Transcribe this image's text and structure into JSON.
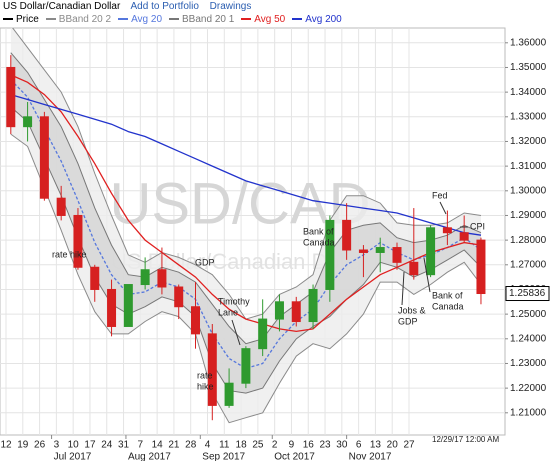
{
  "header": {
    "add_to_portfolio": "Add to Portfolio",
    "drawings": "Drawings"
  },
  "chart_data": {
    "type": "candlestick",
    "title": "US Dollar/Canadian Dollar",
    "watermark": {
      "symbol": "USD/CAD",
      "name": "US Dollar/Canadian Dollar"
    },
    "timestamp": "12/29/17 12:00 AM",
    "x": [
      "2017-06-12",
      "2017-06-19",
      "2017-06-26",
      "2017-07-03",
      "2017-07-10",
      "2017-07-17",
      "2017-07-24",
      "2017-07-31",
      "2017-08-07",
      "2017-08-14",
      "2017-08-21",
      "2017-08-28",
      "2017-09-04",
      "2017-09-11",
      "2017-09-18",
      "2017-09-25",
      "2017-10-02",
      "2017-10-09",
      "2017-10-16",
      "2017-10-23",
      "2017-10-30",
      "2017-11-06",
      "2017-11-13",
      "2017-11-20",
      "2017-11-27",
      "2017-12-04",
      "2017-12-11",
      "2017-12-18",
      "2017-12-25"
    ],
    "series": [
      {
        "name": "Price",
        "color": "#000000",
        "up_color": "#2f9a2f",
        "down_color": "#d62020",
        "open": [
          1.35,
          1.326,
          1.33,
          1.297,
          1.29,
          1.269,
          1.26,
          1.245,
          1.262,
          1.268,
          1.261,
          1.253,
          1.242,
          1.213,
          1.222,
          1.236,
          1.248,
          1.255,
          1.247,
          1.26,
          1.288,
          1.276,
          1.275,
          1.277,
          1.271,
          1.266,
          1.285,
          1.283,
          1.28
        ],
        "high": [
          1.355,
          1.336,
          1.332,
          1.302,
          1.293,
          1.27,
          1.264,
          1.262,
          1.273,
          1.277,
          1.262,
          1.263,
          1.246,
          1.228,
          1.237,
          1.256,
          1.258,
          1.257,
          1.262,
          1.29,
          1.295,
          1.278,
          1.281,
          1.279,
          1.293,
          1.286,
          1.292,
          1.29,
          1.281
        ],
        "low": [
          1.323,
          1.32,
          1.296,
          1.288,
          1.268,
          1.255,
          1.241,
          1.245,
          1.26,
          1.258,
          1.248,
          1.236,
          1.207,
          1.212,
          1.22,
          1.233,
          1.243,
          1.245,
          1.244,
          1.255,
          1.272,
          1.265,
          1.267,
          1.268,
          1.264,
          1.265,
          1.278,
          1.279,
          1.254
        ],
        "close": [
          1.326,
          1.33,
          1.297,
          1.29,
          1.269,
          1.26,
          1.245,
          1.262,
          1.268,
          1.261,
          1.253,
          1.242,
          1.213,
          1.222,
          1.236,
          1.248,
          1.255,
          1.247,
          1.26,
          1.288,
          1.276,
          1.275,
          1.277,
          1.271,
          1.266,
          1.285,
          1.283,
          1.28,
          1.25836
        ]
      },
      {
        "name": "BBand 20 2",
        "color": "#8a8a8a",
        "fill": "#ececec",
        "upper": [
          1.367,
          1.358,
          1.349,
          1.34,
          1.326,
          1.307,
          1.29,
          1.274,
          1.271,
          1.275,
          1.273,
          1.27,
          1.266,
          1.258,
          1.248,
          1.25,
          1.258,
          1.261,
          1.266,
          1.288,
          1.298,
          1.298,
          1.295,
          1.287,
          1.286,
          1.286,
          1.287,
          1.291,
          1.29
        ],
        "lower": [
          1.323,
          1.318,
          1.301,
          1.284,
          1.266,
          1.251,
          1.242,
          1.242,
          1.247,
          1.251,
          1.249,
          1.242,
          1.218,
          1.206,
          1.208,
          1.21,
          1.222,
          1.233,
          1.238,
          1.236,
          1.242,
          1.25,
          1.263,
          1.263,
          1.258,
          1.262,
          1.267,
          1.271,
          1.262
        ]
      },
      {
        "name": "Avg 20",
        "color": "#5577dd",
        "dashed": true,
        "values": [
          1.345,
          1.338,
          1.325,
          1.312,
          1.296,
          1.279,
          1.266,
          1.258,
          1.259,
          1.263,
          1.261,
          1.256,
          1.242,
          1.232,
          1.228,
          1.23,
          1.24,
          1.247,
          1.252,
          1.262,
          1.27,
          1.274,
          1.279,
          1.275,
          1.272,
          1.274,
          1.277,
          1.281,
          1.276
        ]
      },
      {
        "name": "BBand 20 1",
        "color": "#777777",
        "fill": "#d4d4d4",
        "upper": [
          1.356,
          1.348,
          1.337,
          1.326,
          1.311,
          1.293,
          1.278,
          1.266,
          1.265,
          1.269,
          1.267,
          1.263,
          1.254,
          1.245,
          1.238,
          1.24,
          1.249,
          1.254,
          1.259,
          1.275,
          1.284,
          1.286,
          1.287,
          1.281,
          1.279,
          1.28,
          1.282,
          1.286,
          1.283
        ],
        "lower": [
          1.334,
          1.328,
          1.313,
          1.298,
          1.281,
          1.265,
          1.254,
          1.25,
          1.253,
          1.257,
          1.255,
          1.249,
          1.23,
          1.219,
          1.218,
          1.22,
          1.231,
          1.24,
          1.245,
          1.249,
          1.256,
          1.262,
          1.271,
          1.269,
          1.265,
          1.268,
          1.272,
          1.276,
          1.269
        ]
      },
      {
        "name": "Avg 50",
        "color": "#e02020",
        "values": [
          1.347,
          1.344,
          1.339,
          1.332,
          1.322,
          1.311,
          1.299,
          1.288,
          1.28,
          1.275,
          1.27,
          1.265,
          1.258,
          1.252,
          1.248,
          1.246,
          1.244,
          1.243,
          1.244,
          1.25,
          1.256,
          1.261,
          1.266,
          1.269,
          1.272,
          1.275,
          1.277,
          1.279,
          1.278
        ]
      },
      {
        "name": "Avg 200",
        "color": "#2233cc",
        "values": [
          1.339,
          1.337,
          1.335,
          1.333,
          1.331,
          1.329,
          1.327,
          1.324,
          1.322,
          1.319,
          1.316,
          1.313,
          1.31,
          1.307,
          1.304,
          1.302,
          1.3,
          1.298,
          1.296,
          1.295,
          1.294,
          1.293,
          1.292,
          1.291,
          1.289,
          1.287,
          1.285,
          1.283,
          1.282
        ]
      }
    ],
    "ylim": [
      1.201,
      1.366
    ],
    "yticks": [
      {
        "value": 1.21,
        "label": "1.21000"
      },
      {
        "value": 1.22,
        "label": "1.22000"
      },
      {
        "value": 1.23,
        "label": "1.23000"
      },
      {
        "value": 1.24,
        "label": "1.24000"
      },
      {
        "value": 1.25,
        "label": "1.25000"
      },
      {
        "value": 1.26,
        "label": "1.26000"
      },
      {
        "value": 1.27,
        "label": "1.27000"
      },
      {
        "value": 1.28,
        "label": "1.28000"
      },
      {
        "value": 1.29,
        "label": "1.29000"
      },
      {
        "value": 1.3,
        "label": "1.30000"
      },
      {
        "value": 1.31,
        "label": "1.31000"
      },
      {
        "value": 1.32,
        "label": "1.32000"
      },
      {
        "value": 1.33,
        "label": "1.33000"
      },
      {
        "value": 1.34,
        "label": "1.34000"
      },
      {
        "value": 1.35,
        "label": "1.35000"
      },
      {
        "value": 1.36,
        "label": "1.36000"
      }
    ],
    "xticks": [
      {
        "value": "2017-06-12",
        "label": "12"
      },
      {
        "value": "2017-06-19",
        "label": "19"
      },
      {
        "value": "2017-06-26",
        "label": "26"
      },
      {
        "value": "2017-07-03",
        "label": "3"
      },
      {
        "value": "2017-07-10",
        "label": "10"
      },
      {
        "value": "2017-07-17",
        "label": "17"
      },
      {
        "value": "2017-07-24",
        "label": "24"
      },
      {
        "value": "2017-07-31",
        "label": "31"
      },
      {
        "value": "2017-08-07",
        "label": "7"
      },
      {
        "value": "2017-08-14",
        "label": "14"
      },
      {
        "value": "2017-08-21",
        "label": "21"
      },
      {
        "value": "2017-08-28",
        "label": "28"
      },
      {
        "value": "2017-09-04",
        "label": "4"
      },
      {
        "value": "2017-09-11",
        "label": "11"
      },
      {
        "value": "2017-09-18",
        "label": "18"
      },
      {
        "value": "2017-09-25",
        "label": "25"
      },
      {
        "value": "2017-10-02",
        "label": "2"
      },
      {
        "value": "2017-10-09",
        "label": "9"
      },
      {
        "value": "2017-10-16",
        "label": "16"
      },
      {
        "value": "2017-10-23",
        "label": "23"
      },
      {
        "value": "2017-10-30",
        "label": "30"
      },
      {
        "value": "2017-11-06",
        "label": "6"
      },
      {
        "value": "2017-11-13",
        "label": "13"
      },
      {
        "value": "2017-11-20",
        "label": "20"
      },
      {
        "value": "2017-11-27",
        "label": "27"
      }
    ],
    "month_ticks": [
      {
        "value": "2017-07-01",
        "label": "Jul 2017"
      },
      {
        "value": "2017-08-01",
        "label": "Aug 2017"
      },
      {
        "value": "2017-09-01",
        "label": "Sep 2017"
      },
      {
        "value": "2017-10-01",
        "label": "Oct 2017"
      },
      {
        "value": "2017-11-01",
        "label": "Nov 2017"
      }
    ],
    "grid": true,
    "annotations": [
      [
        "rate hike"
      ],
      [
        "GDP"
      ],
      [
        "Timothy",
        "Lane"
      ],
      [
        "rate",
        "hike"
      ],
      [
        "Bank of",
        "Canada"
      ],
      [
        "Jobs &",
        "GDP"
      ],
      [
        "Bank of",
        "Canada"
      ],
      [
        "Fed"
      ],
      [
        "CPI"
      ]
    ]
  }
}
